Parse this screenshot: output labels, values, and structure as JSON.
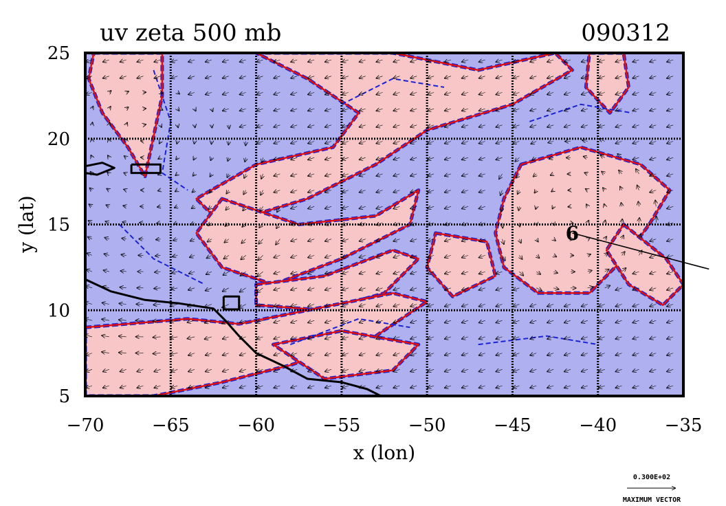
{
  "chart_data": {
    "type": "contour",
    "title": "uv zeta 500 mb",
    "date_label": "090312",
    "xlabel": "x (lon)",
    "ylabel": "y (lat)",
    "xlim": [
      -70,
      -35
    ],
    "ylim": [
      5,
      25
    ],
    "xticks": [
      -70,
      -65,
      -60,
      -55,
      -50,
      -45,
      -40,
      -35
    ],
    "yticks": [
      5,
      10,
      15,
      20,
      25
    ],
    "grid": true,
    "colors": {
      "positive_fill": "#f8c6c6",
      "negative_fill": "#aeb0f0",
      "positive_contour": "#e01010",
      "negative_contour": "#1a22d6",
      "coastline": "#000000",
      "vectors": "#000000"
    },
    "vector_legend": {
      "magnitude_label": "0.300E+02",
      "caption": "MAXIMUM VECTOR"
    },
    "storm_marker": {
      "symbol": "6",
      "lon": -41.5,
      "lat": 14.5,
      "track": [
        [
          -41.5,
          14.5
        ],
        [
          -33.5,
          12.4
        ]
      ]
    },
    "positive_regions": [
      {
        "name": "northeast-tongue",
        "poly": [
          [
            -60,
            25
          ],
          [
            -52,
            25
          ],
          [
            -47,
            24
          ],
          [
            -42.5,
            25
          ],
          [
            -41.5,
            24
          ],
          [
            -45,
            22
          ],
          [
            -50,
            20.5
          ],
          [
            -53,
            18.5
          ],
          [
            -57,
            16.5
          ],
          [
            -62,
            15
          ],
          [
            -63.5,
            16.5
          ],
          [
            -60,
            18.5
          ],
          [
            -55.5,
            19.5
          ],
          [
            -54,
            21.5
          ],
          [
            -57,
            23.5
          ]
        ]
      },
      {
        "name": "band-right-arm",
        "poly": [
          [
            -62,
            16.5
          ],
          [
            -57.5,
            15
          ],
          [
            -53,
            15.5
          ],
          [
            -50.5,
            17
          ],
          [
            -51,
            15
          ],
          [
            -55,
            13
          ],
          [
            -59,
            11.5
          ],
          [
            -62,
            12.5
          ],
          [
            -63.5,
            14.5
          ]
        ]
      },
      {
        "name": "band-lower",
        "poly": [
          [
            -60,
            11.5
          ],
          [
            -56,
            12
          ],
          [
            -52,
            13.5
          ],
          [
            -50.5,
            13
          ],
          [
            -52.5,
            11
          ],
          [
            -56,
            10
          ],
          [
            -60,
            10.3
          ]
        ]
      },
      {
        "name": "south-band",
        "poly": [
          [
            -70,
            9
          ],
          [
            -64,
            9.5
          ],
          [
            -61,
            9.2
          ],
          [
            -57,
            10
          ],
          [
            -52,
            11
          ],
          [
            -50,
            10.5
          ],
          [
            -53,
            8.5
          ],
          [
            -58,
            6.8
          ],
          [
            -62,
            5.8
          ],
          [
            -66,
            5
          ],
          [
            -70,
            5
          ]
        ]
      },
      {
        "name": "south-tail",
        "poly": [
          [
            -59,
            8
          ],
          [
            -55,
            8.8
          ],
          [
            -50.5,
            8
          ],
          [
            -52,
            6.5
          ],
          [
            -56,
            6
          ]
        ]
      },
      {
        "name": "northwest-strip",
        "poly": [
          [
            -69.5,
            25
          ],
          [
            -65.5,
            25
          ],
          [
            -65.5,
            22.5
          ],
          [
            -66.5,
            17.8
          ],
          [
            -67.5,
            19.5
          ],
          [
            -69,
            21.5
          ],
          [
            -69.8,
            23.5
          ]
        ]
      },
      {
        "name": "east-swirl",
        "poly": [
          [
            -44.5,
            18.5
          ],
          [
            -41,
            19.5
          ],
          [
            -37.5,
            18.5
          ],
          [
            -35.8,
            17
          ],
          [
            -37,
            15
          ],
          [
            -38.5,
            13
          ],
          [
            -40.5,
            11
          ],
          [
            -43.5,
            11
          ],
          [
            -45.5,
            12.5
          ],
          [
            -46,
            14.5
          ],
          [
            -45.5,
            16.5
          ]
        ]
      },
      {
        "name": "east-arm",
        "poly": [
          [
            -38.5,
            15
          ],
          [
            -36,
            13
          ],
          [
            -35,
            11.5
          ],
          [
            -36.2,
            10.3
          ],
          [
            -38.2,
            11.5
          ],
          [
            -39.5,
            13.5
          ]
        ]
      },
      {
        "name": "northeast-arm",
        "poly": [
          [
            -40.5,
            25
          ],
          [
            -38.5,
            25
          ],
          [
            -38.2,
            23
          ],
          [
            -39.3,
            21.5
          ],
          [
            -40.7,
            23
          ]
        ]
      },
      {
        "name": "mid-patch",
        "poly": [
          [
            -49.5,
            14.5
          ],
          [
            -46.5,
            14
          ],
          [
            -46,
            12
          ],
          [
            -48.5,
            10.8
          ],
          [
            -50,
            12.5
          ]
        ]
      }
    ]
  }
}
